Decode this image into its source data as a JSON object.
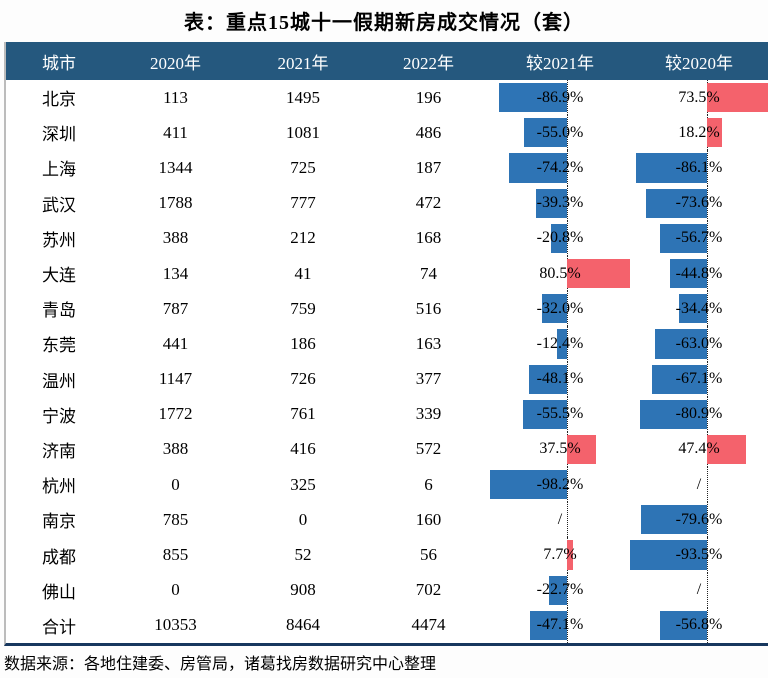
{
  "title": "表：重点15城十一假期新房成交情况（套）",
  "source": "数据来源：各地住建委、房管局，诸葛找房数据研究中心整理",
  "colors": {
    "header_bg": "#25587E",
    "header_text": "#FFFFFF",
    "bar_negative": "#2E74B5",
    "bar_positive": "#F4626C",
    "axis_line": "#222222",
    "bottom_border": "#17375E"
  },
  "chart_data": {
    "type": "table",
    "columns": [
      "城市",
      "2020年",
      "2021年",
      "2022年",
      "较2021年",
      "较2020年"
    ],
    "bar_columns_note": "较2021年 and 较2020年 are rendered as conditional-formatting data bars; negative = blue bar left of dotted zero axis, positive = red bar right of axis, scaled to column min/max",
    "rows": [
      {
        "city": "北京",
        "y2020": "113",
        "y2021": "1495",
        "y2022": "196",
        "vs2021": {
          "value": -86.9,
          "label": "-86.9%"
        },
        "vs2020": {
          "value": 73.5,
          "label": "73.5%"
        }
      },
      {
        "city": "深圳",
        "y2020": "411",
        "y2021": "1081",
        "y2022": "486",
        "vs2021": {
          "value": -55.0,
          "label": "-55.0%"
        },
        "vs2020": {
          "value": 18.2,
          "label": "18.2%"
        }
      },
      {
        "city": "上海",
        "y2020": "1344",
        "y2021": "725",
        "y2022": "187",
        "vs2021": {
          "value": -74.2,
          "label": "-74.2%"
        },
        "vs2020": {
          "value": -86.1,
          "label": "-86.1%"
        }
      },
      {
        "city": "武汉",
        "y2020": "1788",
        "y2021": "777",
        "y2022": "472",
        "vs2021": {
          "value": -39.3,
          "label": "-39.3%"
        },
        "vs2020": {
          "value": -73.6,
          "label": "-73.6%"
        }
      },
      {
        "city": "苏州",
        "y2020": "388",
        "y2021": "212",
        "y2022": "168",
        "vs2021": {
          "value": -20.8,
          "label": "-20.8%"
        },
        "vs2020": {
          "value": -56.7,
          "label": "-56.7%"
        }
      },
      {
        "city": "大连",
        "y2020": "134",
        "y2021": "41",
        "y2022": "74",
        "vs2021": {
          "value": 80.5,
          "label": "80.5%"
        },
        "vs2020": {
          "value": -44.8,
          "label": "-44.8%"
        }
      },
      {
        "city": "青岛",
        "y2020": "787",
        "y2021": "759",
        "y2022": "516",
        "vs2021": {
          "value": -32.0,
          "label": "-32.0%"
        },
        "vs2020": {
          "value": -34.4,
          "label": "-34.4%"
        }
      },
      {
        "city": "东莞",
        "y2020": "441",
        "y2021": "186",
        "y2022": "163",
        "vs2021": {
          "value": -12.4,
          "label": "-12.4%"
        },
        "vs2020": {
          "value": -63.0,
          "label": "-63.0%"
        }
      },
      {
        "city": "温州",
        "y2020": "1147",
        "y2021": "726",
        "y2022": "377",
        "vs2021": {
          "value": -48.1,
          "label": "-48.1%"
        },
        "vs2020": {
          "value": -67.1,
          "label": "-67.1%"
        }
      },
      {
        "city": "宁波",
        "y2020": "1772",
        "y2021": "761",
        "y2022": "339",
        "vs2021": {
          "value": -55.5,
          "label": "-55.5%"
        },
        "vs2020": {
          "value": -80.9,
          "label": "-80.9%"
        }
      },
      {
        "city": "济南",
        "y2020": "388",
        "y2021": "416",
        "y2022": "572",
        "vs2021": {
          "value": 37.5,
          "label": "37.5%"
        },
        "vs2020": {
          "value": 47.4,
          "label": "47.4%"
        }
      },
      {
        "city": "杭州",
        "y2020": "0",
        "y2021": "325",
        "y2022": "6",
        "vs2021": {
          "value": -98.2,
          "label": "-98.2%"
        },
        "vs2020": {
          "value": null,
          "label": "/"
        }
      },
      {
        "city": "南京",
        "y2020": "785",
        "y2021": "0",
        "y2022": "160",
        "vs2021": {
          "value": null,
          "label": "/"
        },
        "vs2020": {
          "value": -79.6,
          "label": "-79.6%"
        }
      },
      {
        "city": "成都",
        "y2020": "855",
        "y2021": "52",
        "y2022": "56",
        "vs2021": {
          "value": 7.7,
          "label": "7.7%"
        },
        "vs2020": {
          "value": -93.5,
          "label": "-93.5%"
        }
      },
      {
        "city": "佛山",
        "y2020": "0",
        "y2021": "908",
        "y2022": "702",
        "vs2021": {
          "value": -22.7,
          "label": "-22.7%"
        },
        "vs2020": {
          "value": null,
          "label": "/"
        }
      },
      {
        "city": "合计",
        "y2020": "10353",
        "y2021": "8464",
        "y2022": "4474",
        "vs2021": {
          "value": -47.1,
          "label": "-47.1%"
        },
        "vs2020": {
          "value": -56.8,
          "label": "-56.8%"
        }
      }
    ]
  }
}
